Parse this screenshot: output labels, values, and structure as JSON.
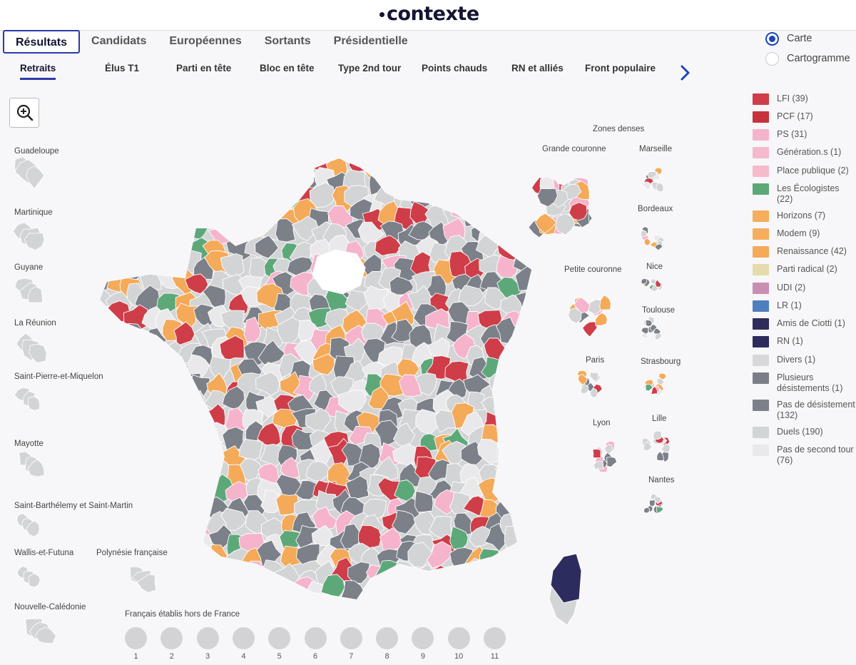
{
  "logo": "contexte",
  "tabs": [
    {
      "label": "Résultats",
      "active": true
    },
    {
      "label": "Candidats",
      "active": false
    },
    {
      "label": "Européennes",
      "active": false
    },
    {
      "label": "Sortants",
      "active": false
    },
    {
      "label": "Présidentielle",
      "active": false
    }
  ],
  "subtabs": [
    {
      "label": "Retraits",
      "active": true
    },
    {
      "label": "Élus T1",
      "active": false
    },
    {
      "label": "Parti en tête",
      "active": false
    },
    {
      "label": "Bloc en tête",
      "active": false
    },
    {
      "label": "Type 2nd tour",
      "active": false
    },
    {
      "label": "Points chauds",
      "active": false
    },
    {
      "label": "RN et alliés",
      "active": false
    },
    {
      "label": "Front populaire",
      "active": false
    }
  ],
  "view": {
    "carte_label": "Carte",
    "cartogramme_label": "Cartogramme",
    "selected": "Carte"
  },
  "legend": [
    {
      "label": "LFI (39)",
      "color": "#cf3d48"
    },
    {
      "label": "PCF (17)",
      "color": "#c7323d"
    },
    {
      "label": "PS (31)",
      "color": "#f5b3cc"
    },
    {
      "label": "Génération.s (1)",
      "color": "#f5b9cd"
    },
    {
      "label": "Place publique (2)",
      "color": "#f7b9cc"
    },
    {
      "label": "Les Écologistes (22)",
      "color": "#5da879"
    },
    {
      "label": "Horizons (7)",
      "color": "#f6ad5c"
    },
    {
      "label": "Modem (9)",
      "color": "#f5ae5d"
    },
    {
      "label": "Renaissance (42)",
      "color": "#f4aa58"
    },
    {
      "label": "Parti radical (2)",
      "color": "#e6dcab"
    },
    {
      "label": "UDI (2)",
      "color": "#c98fb3"
    },
    {
      "label": "LR (1)",
      "color": "#4e7fbf"
    },
    {
      "label": "Amis de Ciotti (1)",
      "color": "#2f2c5c"
    },
    {
      "label": "RN (1)",
      "color": "#2c2c5e"
    },
    {
      "label": "Divers (1)",
      "color": "#d8d8da"
    },
    {
      "label": "Plusieurs désistements (1)",
      "color": "#7a7f87"
    },
    {
      "label": "Pas de désistement (132)",
      "color": "#7b8089"
    },
    {
      "label": "Duels (190)",
      "color": "#d3d4d6"
    },
    {
      "label": "Pas de second tour (76)",
      "color": "#e9e9eb"
    }
  ],
  "overseas": [
    "Guadeloupe",
    "Martinique",
    "Guyane",
    "La Réunion",
    "Saint-Pierre-et-Miquelon",
    "Mayotte",
    "Saint-Barthélemy et Saint-Martin",
    "Wallis-et-Futuna",
    "Polynésie française",
    "Nouvelle-Calédonie"
  ],
  "zones": {
    "title": "Zones denses",
    "items": [
      "Grande couronne",
      "Marseille",
      "Bordeaux",
      "Petite couronne",
      "Nice",
      "Toulouse",
      "Paris",
      "Strasbourg",
      "Lyon",
      "Lille",
      "Nantes"
    ]
  },
  "abroad": {
    "title": "Français établis hors de France",
    "constituencies": [
      "1",
      "2",
      "3",
      "4",
      "5",
      "6",
      "7",
      "8",
      "9",
      "10",
      "11"
    ]
  },
  "palette": {
    "lfi": "#cf3d48",
    "ps": "#f5b3cc",
    "eco": "#5da879",
    "ens": "#f4aa58",
    "nodes": "#7b8089",
    "duel": "#d3d4d6",
    "none": "#e9e9eb",
    "rn": "#2c2c5e",
    "lr": "#4e7fbf",
    "rad": "#e6dcab",
    "udi": "#c98fb3"
  }
}
